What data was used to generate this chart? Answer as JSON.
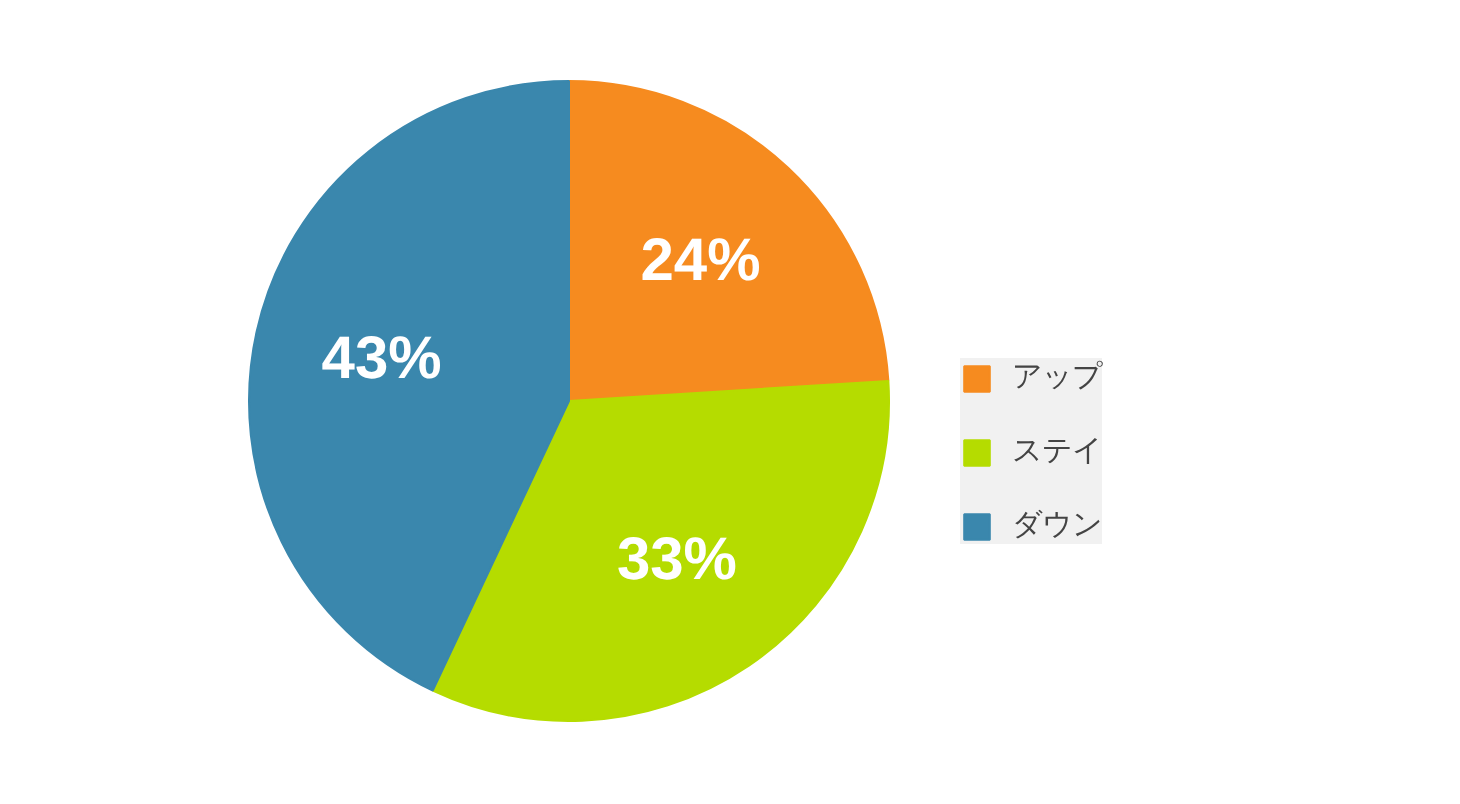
{
  "chart_data": {
    "type": "pie",
    "categories": [
      "アップ",
      "ステイ",
      "ダウン"
    ],
    "values": [
      24,
      33,
      43
    ],
    "colors": [
      "#f68b1f",
      "#b5dc00",
      "#3a87ad"
    ],
    "value_labels": [
      "24%",
      "33%",
      "43%"
    ],
    "legend": "right"
  }
}
